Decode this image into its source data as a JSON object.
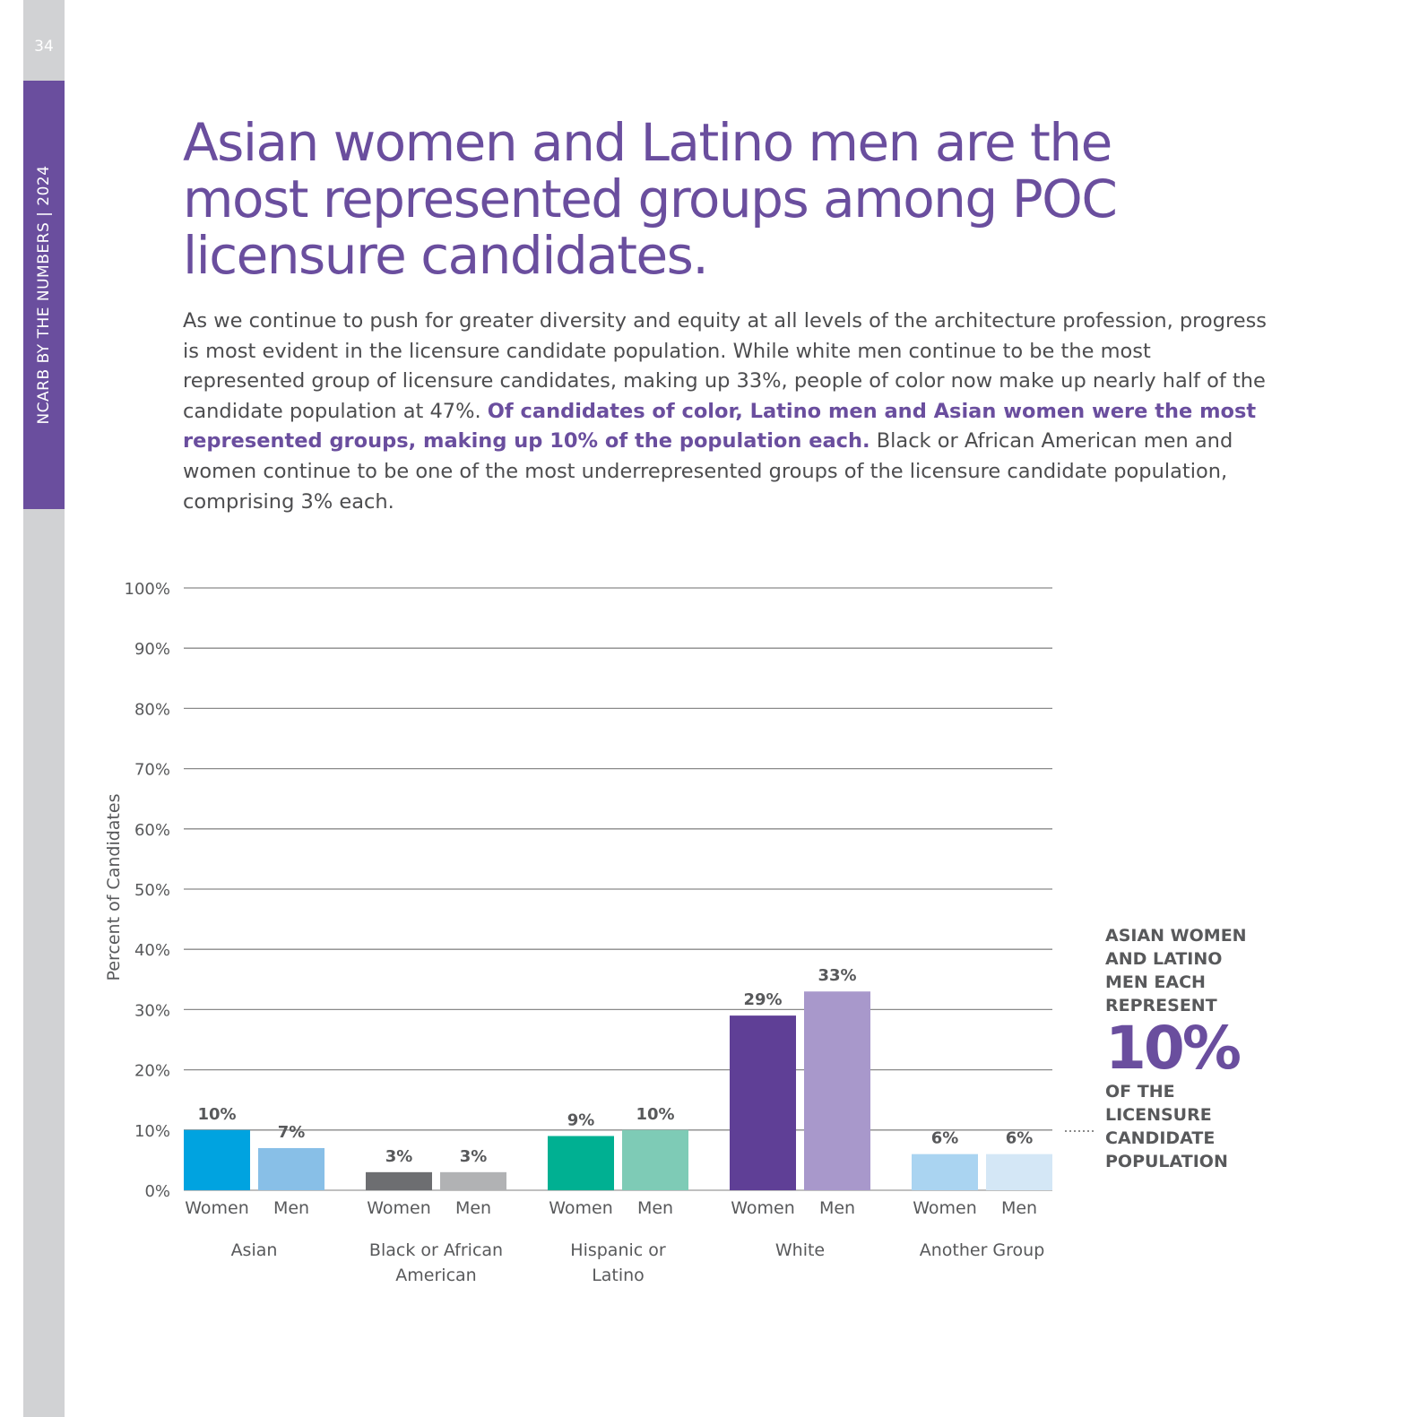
{
  "sidebar": {
    "page_number": "34",
    "running_title": "NCARB BY THE NUMBERS  |  2024"
  },
  "title": "Asian women and Latino men are the most represented groups among POC licensure candidates.",
  "body": {
    "text_before": "As we continue to push for greater diversity and equity at all levels of the architecture profession, progress is most evident in the licensure candidate population. While white men continue to be the most represented group of licensure candidates, making up 33%, people of color now make up nearly half of the candidate population at 47%. ",
    "bold": "Of candidates of color, Latino men and Asian women were the most represented groups, making up 10% of the population each.",
    "text_after": " Black or African American men and women continue to be one of the most underrepresented groups of the licensure candidate population, comprising 3% each."
  },
  "callout": {
    "line1": "ASIAN WOMEN AND LATINO MEN EACH REPRESENT",
    "big": "10%",
    "line2": "OF THE LICENSURE CANDIDATE POPULATION"
  },
  "chart_data": {
    "type": "bar",
    "ylabel": "Percent of Candidates",
    "ylim": [
      0,
      100
    ],
    "yticks": [
      "0%",
      "10%",
      "20%",
      "30%",
      "40%",
      "50%",
      "60%",
      "70%",
      "80%",
      "90%",
      "100%"
    ],
    "grid": true,
    "categories": [
      "Asian",
      "Black or African American",
      "Hispanic or Latino",
      "White",
      "Another Group"
    ],
    "subcategories": [
      "Women",
      "Men"
    ],
    "values": [
      [
        10,
        7
      ],
      [
        3,
        3
      ],
      [
        9,
        10
      ],
      [
        29,
        33
      ],
      [
        6,
        6
      ]
    ],
    "data_labels": [
      [
        "10%",
        "7%"
      ],
      [
        "3%",
        "3%"
      ],
      [
        "9%",
        "10%"
      ],
      [
        "29%",
        "33%"
      ],
      [
        "6%",
        "6%"
      ]
    ],
    "colors": [
      [
        "#00a3e0",
        "#88bfe7"
      ],
      [
        "#6d6e71",
        "#b1b2b4"
      ],
      [
        "#00b092",
        "#7ecbb6"
      ],
      [
        "#5f3f96",
        "#a898cb"
      ],
      [
        "#aad4f1",
        "#d4e7f6"
      ]
    ]
  }
}
